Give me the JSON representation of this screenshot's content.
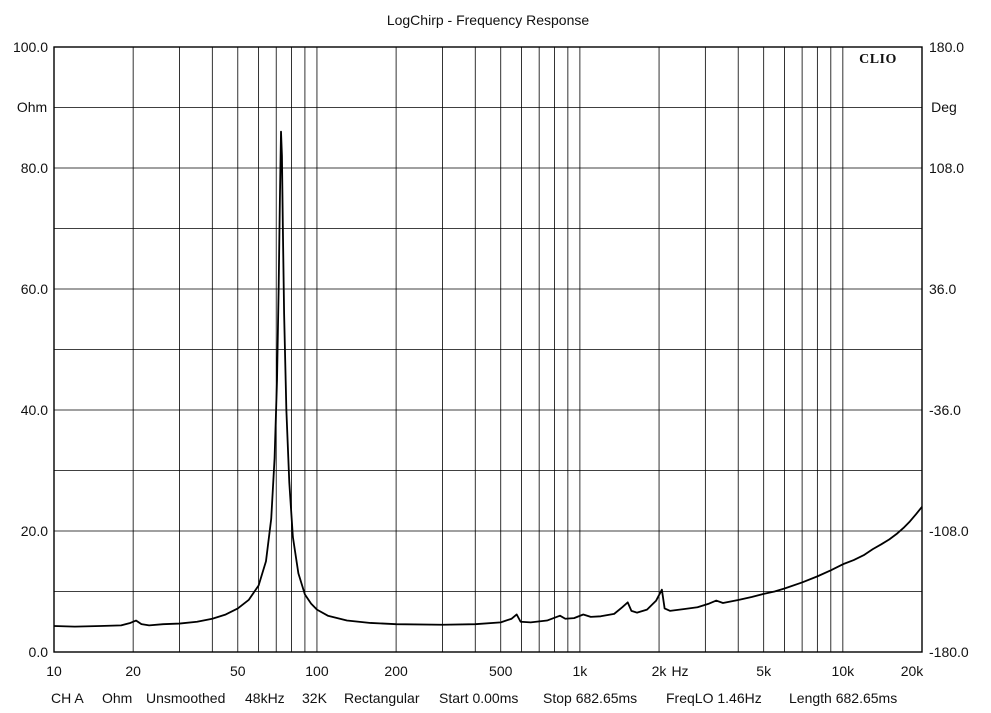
{
  "chart_data": {
    "type": "line",
    "title": "LogChirp - Frequency Response",
    "brand": "CLIO",
    "x_scale": "log",
    "xlim": [
      10,
      20000
    ],
    "xunit": "Hz",
    "x_tick_labels": [
      {
        "value": 10,
        "label": "10"
      },
      {
        "value": 20,
        "label": "20"
      },
      {
        "value": 50,
        "label": "50"
      },
      {
        "value": 100,
        "label": "100"
      },
      {
        "value": 200,
        "label": "200"
      },
      {
        "value": 500,
        "label": "500"
      },
      {
        "value": 1000,
        "label": "1k"
      },
      {
        "value": 2000,
        "label": "2k"
      },
      {
        "value": 5000,
        "label": "5k"
      },
      {
        "value": 10000,
        "label": "10k"
      },
      {
        "value": 20000,
        "label": "20k"
      }
    ],
    "ylim": [
      0,
      100
    ],
    "yunit": "Ohm",
    "y_tick_labels": [
      {
        "value": 0,
        "label": "0.0"
      },
      {
        "value": 20,
        "label": "20.0"
      },
      {
        "value": 40,
        "label": "40.0"
      },
      {
        "value": 60,
        "label": "60.0"
      },
      {
        "value": 80,
        "label": "80.0"
      },
      {
        "value": 100,
        "label": "100.0"
      }
    ],
    "y2lim": [
      -180,
      180
    ],
    "y2unit": "Deg",
    "y2_tick_labels": [
      {
        "value": -180,
        "label": "-180.0"
      },
      {
        "value": -108,
        "label": "-108.0"
      },
      {
        "value": -36,
        "label": "-36.0"
      },
      {
        "value": 36,
        "label": "36.0"
      },
      {
        "value": 108,
        "label": "108.0"
      },
      {
        "value": 180,
        "label": "180.0"
      }
    ],
    "grid": true,
    "series": [
      {
        "color": "#000000",
        "points": [
          [
            10,
            4.3
          ],
          [
            12,
            4.2
          ],
          [
            15,
            4.3
          ],
          [
            18,
            4.4
          ],
          [
            19.5,
            4.8
          ],
          [
            20.5,
            5.2
          ],
          [
            21.5,
            4.6
          ],
          [
            23,
            4.4
          ],
          [
            26,
            4.6
          ],
          [
            30,
            4.7
          ],
          [
            35,
            5.0
          ],
          [
            40,
            5.5
          ],
          [
            45,
            6.2
          ],
          [
            50,
            7.2
          ],
          [
            55,
            8.6
          ],
          [
            60,
            11.0
          ],
          [
            64,
            15.0
          ],
          [
            67,
            22.0
          ],
          [
            69,
            32.0
          ],
          [
            70.5,
            45.0
          ],
          [
            71.5,
            60.0
          ],
          [
            72.3,
            75.0
          ],
          [
            73,
            86.0
          ],
          [
            73.6,
            82.0
          ],
          [
            74.2,
            70.0
          ],
          [
            75,
            56.0
          ],
          [
            76.5,
            40.0
          ],
          [
            78.5,
            28.0
          ],
          [
            81,
            19.0
          ],
          [
            85,
            13.0
          ],
          [
            90,
            9.5
          ],
          [
            95,
            8.0
          ],
          [
            100,
            7.0
          ],
          [
            110,
            6.0
          ],
          [
            130,
            5.2
          ],
          [
            160,
            4.8
          ],
          [
            200,
            4.6
          ],
          [
            300,
            4.5
          ],
          [
            400,
            4.6
          ],
          [
            500,
            4.9
          ],
          [
            550,
            5.5
          ],
          [
            575,
            6.2
          ],
          [
            595,
            5.0
          ],
          [
            650,
            4.9
          ],
          [
            750,
            5.2
          ],
          [
            840,
            6.0
          ],
          [
            880,
            5.5
          ],
          [
            950,
            5.6
          ],
          [
            1030,
            6.2
          ],
          [
            1100,
            5.8
          ],
          [
            1200,
            5.9
          ],
          [
            1350,
            6.3
          ],
          [
            1450,
            7.4
          ],
          [
            1520,
            8.2
          ],
          [
            1570,
            6.8
          ],
          [
            1650,
            6.5
          ],
          [
            1800,
            7.0
          ],
          [
            1950,
            8.5
          ],
          [
            2050,
            10.3
          ],
          [
            2100,
            7.2
          ],
          [
            2200,
            6.8
          ],
          [
            2500,
            7.1
          ],
          [
            2800,
            7.4
          ],
          [
            3100,
            8.0
          ],
          [
            3300,
            8.5
          ],
          [
            3500,
            8.1
          ],
          [
            4000,
            8.6
          ],
          [
            4500,
            9.1
          ],
          [
            5000,
            9.6
          ],
          [
            5500,
            10.0
          ],
          [
            6000,
            10.5
          ],
          [
            7000,
            11.5
          ],
          [
            8000,
            12.5
          ],
          [
            9000,
            13.5
          ],
          [
            10000,
            14.5
          ],
          [
            11000,
            15.2
          ],
          [
            12000,
            16.0
          ],
          [
            13000,
            17.0
          ],
          [
            14000,
            17.8
          ],
          [
            15000,
            18.6
          ],
          [
            16000,
            19.5
          ],
          [
            17000,
            20.5
          ],
          [
            18000,
            21.6
          ],
          [
            19000,
            22.8
          ],
          [
            20000,
            24.0
          ]
        ]
      }
    ],
    "footer": [
      "CH A",
      "Ohm",
      "Unsmoothed",
      "48kHz",
      "32K",
      "Rectangular",
      "Start 0.00ms",
      "Stop 682.65ms",
      "FreqLO 1.46Hz",
      "Length 682.65ms"
    ]
  }
}
